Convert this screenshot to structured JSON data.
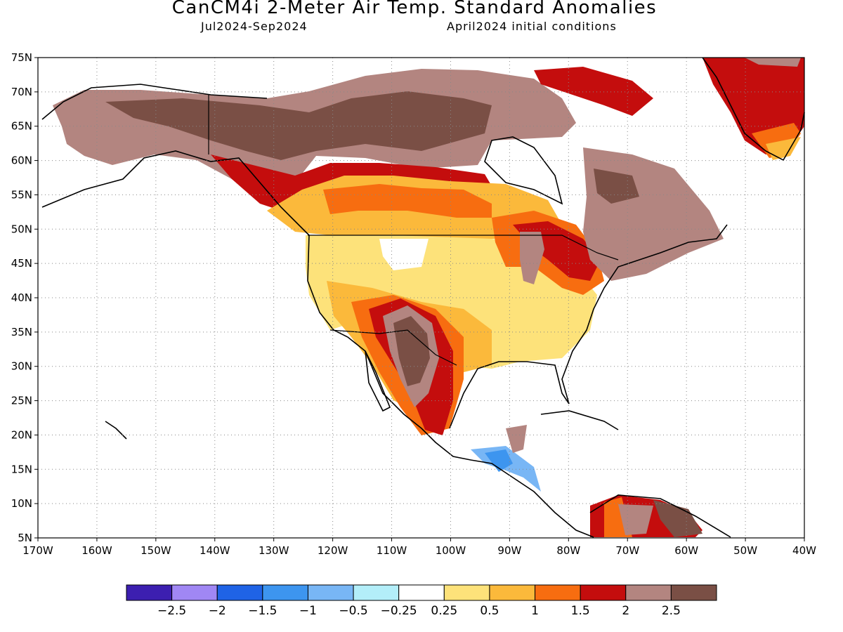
{
  "header": {
    "title": "CanCM4i 2-Meter Air Temp. Standard Anomalies",
    "period": "Jul2024-Sep2024",
    "init": "April2024 initial conditions"
  },
  "map": {
    "lon_range": [
      -170,
      -40
    ],
    "lat_range": [
      5,
      75
    ],
    "lon_ticks": [
      {
        "value": -170,
        "label": "170W"
      },
      {
        "value": -160,
        "label": "160W"
      },
      {
        "value": -150,
        "label": "150W"
      },
      {
        "value": -140,
        "label": "140W"
      },
      {
        "value": -130,
        "label": "130W"
      },
      {
        "value": -120,
        "label": "120W"
      },
      {
        "value": -110,
        "label": "110W"
      },
      {
        "value": -100,
        "label": "100W"
      },
      {
        "value": -90,
        "label": "90W"
      },
      {
        "value": -80,
        "label": "80W"
      },
      {
        "value": -70,
        "label": "70W"
      },
      {
        "value": -60,
        "label": "60W"
      },
      {
        "value": -50,
        "label": "50W"
      },
      {
        "value": -40,
        "label": "40W"
      }
    ],
    "lat_ticks": [
      {
        "value": 5,
        "label": "5N"
      },
      {
        "value": 10,
        "label": "10N"
      },
      {
        "value": 15,
        "label": "15N"
      },
      {
        "value": 20,
        "label": "20N"
      },
      {
        "value": 25,
        "label": "25N"
      },
      {
        "value": 30,
        "label": "30N"
      },
      {
        "value": 35,
        "label": "35N"
      },
      {
        "value": 40,
        "label": "40N"
      },
      {
        "value": 45,
        "label": "45N"
      },
      {
        "value": 50,
        "label": "50N"
      },
      {
        "value": 55,
        "label": "55N"
      },
      {
        "value": 60,
        "label": "60N"
      },
      {
        "value": 65,
        "label": "65N"
      },
      {
        "value": 70,
        "label": "70N"
      },
      {
        "value": 75,
        "label": "75N"
      }
    ],
    "grid": "dotted"
  },
  "colorbar": {
    "colors": [
      "#3c1fb0",
      "#a087f4",
      "#1f63e6",
      "#3d95ef",
      "#78b6f5",
      "#b3eef9",
      "#ffffff",
      "#fde27a",
      "#fbb93b",
      "#f76d10",
      "#c40d0d",
      "#b38580",
      "#7a4f45"
    ],
    "labels": [
      "-2.5",
      "-2",
      "-1.5",
      "-1",
      "-0.5",
      "-0.25",
      "0.25",
      "0.5",
      "1",
      "1.5",
      "2",
      "2.5"
    ]
  }
}
